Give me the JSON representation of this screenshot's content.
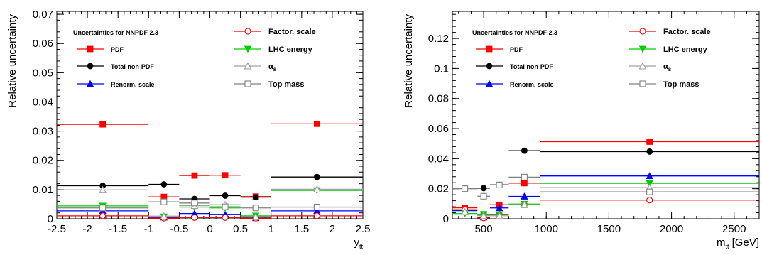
{
  "chart_data": [
    {
      "type": "scatter",
      "xlabel_main": "y",
      "xlabel_sub": "tt̄",
      "xlabel_unit": "",
      "ylabel": "Relative uncertainty",
      "xlim": [
        -2.5,
        2.5
      ],
      "ylim": [
        0,
        0.071
      ],
      "xticks": [
        -2.5,
        -2,
        -1.5,
        -1,
        -0.5,
        0,
        0.5,
        1,
        1.5,
        2,
        2.5
      ],
      "xticklabels": [
        "-2.5",
        "-2",
        "-1.5",
        "-1",
        "-0.5",
        "0",
        "0.5",
        "1",
        "1.5",
        "2",
        "2.5"
      ],
      "yticks": [
        0,
        0.01,
        0.02,
        0.03,
        0.04,
        0.05,
        0.06,
        0.07
      ],
      "yticklabels": [
        "0",
        "0.01",
        "0.02",
        "0.03",
        "0.04",
        "0.05",
        "0.06",
        "0.07"
      ],
      "xtick_minor_step": 0.1,
      "ytick_minor_step": 0.002,
      "bins": [
        [
          -2.5,
          -1
        ],
        [
          -1,
          -0.5
        ],
        [
          -0.5,
          0
        ],
        [
          0,
          0.5
        ],
        [
          0.5,
          1
        ],
        [
          1,
          2.5
        ]
      ],
      "legend": {
        "header": "Uncertainties for NNPDF 2.3",
        "entries": [
          "PDF",
          "Total non-PDF",
          "Renorm. scale",
          "Factor. scale",
          "LHC energy",
          "αs",
          "Top mass"
        ]
      },
      "series": [
        {
          "name": "PDF",
          "color": "#ff0000",
          "marker": "square-filled",
          "x": [
            -1.75,
            -0.75,
            -0.25,
            0.25,
            0.75,
            1.75
          ],
          "values": [
            0.0323,
            0.0075,
            0.0148,
            0.0149,
            0.0076,
            0.0325
          ]
        },
        {
          "name": "Total non-PDF",
          "color": "#000000",
          "marker": "circle-filled",
          "x": [
            -1.75,
            -0.75,
            -0.25,
            0.25,
            0.75,
            1.75
          ],
          "values": [
            0.0113,
            0.0118,
            0.0068,
            0.0079,
            0.0074,
            0.0143
          ]
        },
        {
          "name": "Renorm. scale",
          "color": "#0000ff",
          "marker": "triangle-up-filled",
          "x": [
            -1.75,
            -0.75,
            -0.25,
            0.25,
            0.75,
            1.75
          ],
          "values": [
            0.0027,
            0.0005,
            0.0018,
            0.0015,
            0.0003,
            0.0027
          ]
        },
        {
          "name": "Factor. scale",
          "color": "#ff0000",
          "marker": "circle-open",
          "x": [
            -1.75,
            -0.75,
            -0.25,
            0.25,
            0.75,
            1.75
          ],
          "values": [
            0.001,
            0.0002,
            0.0004,
            0.0004,
            0.0002,
            0.001
          ]
        },
        {
          "name": "LHC energy",
          "color": "#00cc00",
          "marker": "triangle-down-filled",
          "x": [
            -1.75,
            -0.75,
            -0.25,
            0.25,
            0.75,
            1.75
          ],
          "values": [
            0.0044,
            0.0007,
            0.004,
            0.0037,
            0.001,
            0.0097
          ]
        },
        {
          "name": "αs",
          "color": "#a0a0a0",
          "marker": "triangle-up-open",
          "x": [
            -1.75,
            -0.75,
            -0.25,
            0.25,
            0.75,
            1.75
          ],
          "values": [
            0.0099,
            0.0009,
            0.0045,
            0.0048,
            0.0007,
            0.0101
          ]
        },
        {
          "name": "Top mass",
          "color": "#808080",
          "marker": "square-open",
          "x": [
            -1.75,
            -0.75,
            -0.25,
            0.25,
            0.75,
            1.75
          ],
          "values": [
            0.0037,
            0.0058,
            0.0054,
            0.0041,
            0.0037,
            0.004
          ]
        }
      ]
    },
    {
      "type": "scatter",
      "xlabel_main": "m",
      "xlabel_sub": "tt̄",
      "xlabel_unit": " [GeV]",
      "ylabel": "Relative uncertainty",
      "xlim": [
        250,
        2700
      ],
      "ylim": [
        0,
        0.138
      ],
      "xticks": [
        500,
        1000,
        1500,
        2000,
        2500
      ],
      "xticklabels": [
        "500",
        "1000",
        "1500",
        "2000",
        "2500"
      ],
      "yticks": [
        0,
        0.02,
        0.04,
        0.06,
        0.08,
        0.1,
        0.12
      ],
      "yticklabels": [
        "0",
        "0.02",
        "0.04",
        "0.06",
        "0.08",
        "0.1",
        "0.12"
      ],
      "xtick_minor_step": 100,
      "ytick_minor_step": 0.004,
      "bins": [
        [
          250,
          450
        ],
        [
          450,
          550
        ],
        [
          550,
          700
        ],
        [
          700,
          950
        ],
        [
          950,
          2700
        ]
      ],
      "legend": {
        "header": "Uncertainties for NNPDF 2.3",
        "entries": [
          "PDF",
          "Total non-PDF",
          "Renorm. scale",
          "Factor. scale",
          "LHC energy",
          "αs",
          "Top mass"
        ]
      },
      "series": [
        {
          "name": "PDF",
          "color": "#ff0000",
          "marker": "square-filled",
          "x": [
            350,
            500,
            625,
            825,
            1825
          ],
          "values": [
            0.0073,
            0.0023,
            0.0093,
            0.0237,
            0.0513
          ]
        },
        {
          "name": "Total non-PDF",
          "color": "#000000",
          "marker": "circle-filled",
          "x": [
            350,
            500,
            625,
            825,
            1825
          ],
          "values": [
            0.0202,
            0.0204,
            0.0226,
            0.0453,
            0.0447
          ]
        },
        {
          "name": "Renorm. scale",
          "color": "#0000ff",
          "marker": "triangle-up-filled",
          "x": [
            350,
            500,
            625,
            825,
            1825
          ],
          "values": [
            0.0055,
            0.001,
            0.0072,
            0.0149,
            0.0285
          ]
        },
        {
          "name": "Factor. scale",
          "color": "#ff0000",
          "marker": "circle-open",
          "x": [
            350,
            500,
            625,
            825,
            1825
          ],
          "values": [
            0.006,
            0.0005,
            0.003,
            0.0095,
            0.0124
          ]
        },
        {
          "name": "LHC energy",
          "color": "#00cc00",
          "marker": "triangle-down-filled",
          "x": [
            350,
            500,
            625,
            825,
            1825
          ],
          "values": [
            0.0035,
            0.003,
            0.0028,
            0.0098,
            0.0236
          ]
        },
        {
          "name": "αs",
          "color": "#a0a0a0",
          "marker": "triangle-up-open",
          "x": [
            350,
            500,
            625,
            825,
            1825
          ],
          "values": [
            0.0047,
            0.002,
            0.002,
            0.0093,
            0.0207
          ]
        },
        {
          "name": "Top mass",
          "color": "#808080",
          "marker": "square-open",
          "x": [
            350,
            500,
            625,
            825,
            1825
          ],
          "values": [
            0.02,
            0.015,
            0.0225,
            0.0277,
            0.0179
          ]
        }
      ]
    }
  ]
}
